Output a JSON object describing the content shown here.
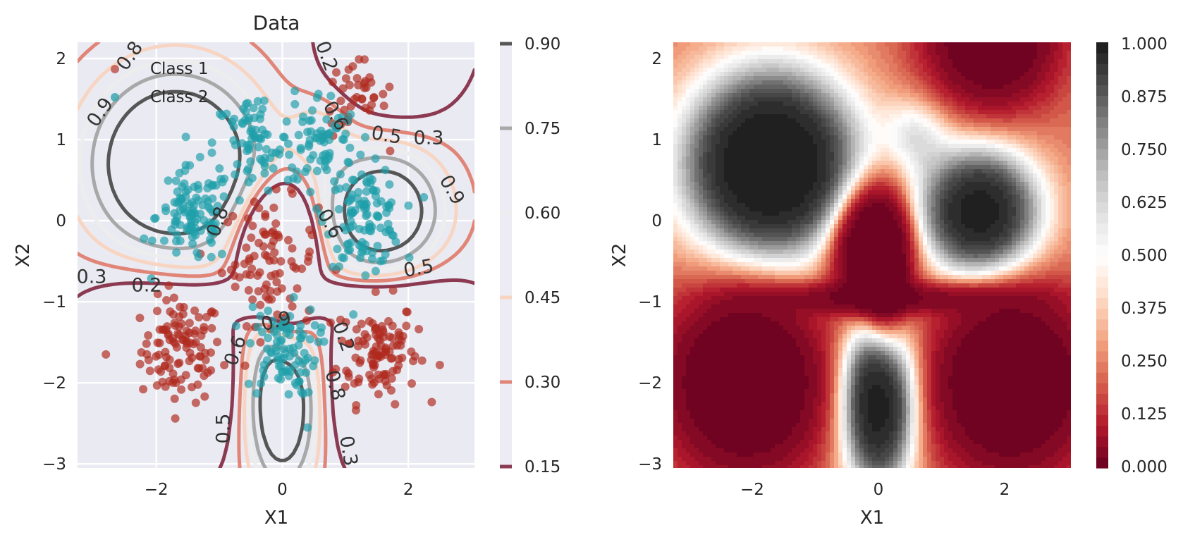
{
  "chart_data": [
    {
      "type": "scatter",
      "title": "Data",
      "xlabel": "X1",
      "ylabel": "X2",
      "xlim": [
        -3.25,
        3.05
      ],
      "ylim": [
        -3.05,
        2.2
      ],
      "xticks": [
        "−2",
        "0",
        "2"
      ],
      "xtick_values": [
        -2,
        0,
        2
      ],
      "yticks": [
        "2",
        "1",
        "0",
        "−1",
        "−2",
        "−3"
      ],
      "ytick_values": [
        2,
        1,
        0,
        -1,
        -2,
        -3
      ],
      "grid": true,
      "background": "#EAEAF2",
      "legend": {
        "placement": "top-left"
      },
      "series": [
        {
          "name": "Class 1",
          "color": "#A51E12",
          "clusters": [
            {
              "center": [
                -1.6,
                -1.6
              ],
              "spread": 0.32,
              "count": 110
            },
            {
              "center": [
                1.5,
                -1.6
              ],
              "spread": 0.32,
              "count": 110
            },
            {
              "center": [
                -0.2,
                -0.5
              ],
              "spread": 0.38,
              "count": 90
            },
            {
              "center": [
                1.15,
                1.5
              ],
              "spread": 0.25,
              "count": 40
            }
          ],
          "points": [
            [
              -2.8,
              -1.65
            ],
            [
              2.5,
              -1.78
            ],
            [
              1.7,
              1.65
            ]
          ]
        },
        {
          "name": "Class 2",
          "color": "#1B9AA6",
          "clusters": [
            {
              "center": [
                -1.4,
                0.05
              ],
              "spread": 0.3,
              "count": 110
            },
            {
              "center": [
                1.3,
                0.05
              ],
              "spread": 0.3,
              "count": 110
            },
            {
              "center": [
                -0.45,
                0.95
              ],
              "spread": 0.32,
              "count": 70
            },
            {
              "center": [
                0.6,
                1.0
              ],
              "spread": 0.3,
              "count": 70
            },
            {
              "center": [
                0.0,
                -1.6
              ],
              "spread": 0.28,
              "count": 90
            }
          ],
          "points": [
            [
              0.4,
              -2.55
            ],
            [
              -0.55,
              1.45
            ]
          ]
        }
      ],
      "contours": {
        "levels": [
          0.15,
          0.3,
          0.45,
          0.6,
          0.75,
          0.9
        ],
        "colors": [
          "#8B3A52",
          "#E08577",
          "#F8D5C2",
          "#EDEDED",
          "#A8A8A8",
          "#565656"
        ],
        "labels": [
          "0.8",
          "0.9",
          "0.2",
          "0.6",
          "0.5",
          "0.3",
          "0.9",
          "0.8",
          "0.6",
          "0.3",
          "0.2",
          "0.5",
          "0.9",
          "0.2",
          "0.6",
          "0.8",
          "0.5",
          "0.3"
        ]
      },
      "colorbar": {
        "ticks": [
          "0.90",
          "0.75",
          "0.60",
          "0.45",
          "0.30",
          "0.15"
        ]
      }
    },
    {
      "type": "heatmap",
      "xlabel": "X1",
      "ylabel": "X2",
      "xlim": [
        -3.25,
        3.05
      ],
      "ylim": [
        -3.05,
        2.2
      ],
      "xticks": [
        "−2",
        "0",
        "2"
      ],
      "xtick_values": [
        -2,
        0,
        2
      ],
      "yticks": [
        "2",
        "1",
        "0",
        "−1",
        "−2",
        "−3"
      ],
      "ytick_values": [
        2,
        1,
        0,
        -1,
        -2,
        -3
      ],
      "colormap": "RdGy",
      "colormap_colors": [
        "#67001F",
        "#B2182B",
        "#D6604D",
        "#F4A582",
        "#FDDBC7",
        "#FFFFFF",
        "#E0E0E0",
        "#BABABA",
        "#878787",
        "#4D4D4D",
        "#1A1A1A"
      ],
      "colorbar": {
        "ticks": [
          "1.000",
          "0.875",
          "0.750",
          "0.625",
          "0.500",
          "0.375",
          "0.250",
          "0.125",
          "0.000"
        ]
      }
    }
  ]
}
